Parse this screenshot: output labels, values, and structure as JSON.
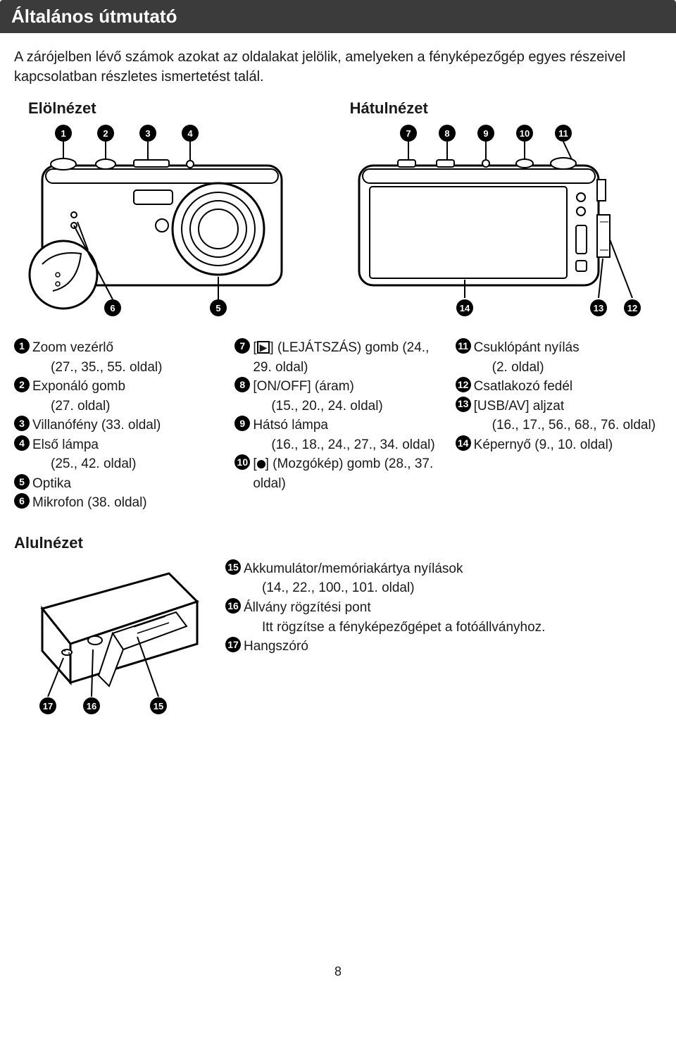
{
  "page": {
    "title": "Általános útmutató",
    "intro": "A zárójelben lévő számok azokat az oldalakat jelölik, amelyeken a fényképezőgép egyes részeivel kapcsolatban részletes ismertetést talál.",
    "front_label": "Elölnézet",
    "rear_label": "Hátulnézet",
    "bottom_label": "Alulnézet",
    "page_number": "8"
  },
  "front_callouts": [
    "1",
    "2",
    "3",
    "4",
    "5",
    "6"
  ],
  "rear_callouts": [
    "7",
    "8",
    "9",
    "10",
    "11",
    "12",
    "13",
    "14"
  ],
  "bottom_callouts": [
    "15",
    "16",
    "17"
  ],
  "legend_col1": [
    {
      "n": "1",
      "t": "Zoom vezérlő",
      "s": "(27., 35., 55. oldal)"
    },
    {
      "n": "2",
      "t": "Exponáló gomb",
      "s": "(27. oldal)"
    },
    {
      "n": "3",
      "t": "Villanófény (33. oldal)",
      "s": ""
    },
    {
      "n": "4",
      "t": "Első lámpa",
      "s": "(25., 42. oldal)"
    },
    {
      "n": "5",
      "t": "Optika",
      "s": ""
    },
    {
      "n": "6",
      "t": "Mikrofon (38. oldal)",
      "s": ""
    }
  ],
  "legend_col2": [
    {
      "n": "7",
      "t": "[▶] (LEJÁTSZÁS) gomb (24., 29. oldal)",
      "icon": "play"
    },
    {
      "n": "8",
      "t": "[ON/OFF] (áram)",
      "s": "(15., 20., 24. oldal)"
    },
    {
      "n": "9",
      "t": "Hátsó lámpa",
      "s": "(16., 18., 24., 27., 34. oldal)"
    },
    {
      "n": "10",
      "t": "[●] (Mozgókép) gomb (28., 37. oldal)",
      "icon": "dot"
    }
  ],
  "legend_col3": [
    {
      "n": "11",
      "t": "Csuklópánt nyílás",
      "s": "(2. oldal)"
    },
    {
      "n": "12",
      "t": "Csatlakozó fedél",
      "s": ""
    },
    {
      "n": "13",
      "t": "[USB/AV] aljzat",
      "s": "(16., 17., 56., 68., 76. oldal)"
    },
    {
      "n": "14",
      "t": "Képernyő (9., 10. oldal)",
      "s": ""
    }
  ],
  "bottom_legend": [
    {
      "n": "15",
      "t": "Akkumulátor/memóriakártya nyílások",
      "s": "(14., 22., 100., 101. oldal)"
    },
    {
      "n": "16",
      "t": "Állvány rögzítési pont",
      "s": "Itt rögzítse a fényképezőgépet a fotóállványhoz."
    },
    {
      "n": "17",
      "t": "Hangszóró",
      "s": ""
    }
  ],
  "colors": {
    "titlebar_bg": "#3b3b3b",
    "titlebar_fg": "#ffffff",
    "text": "#1a1a1a",
    "callout_bg": "#000000",
    "callout_fg": "#ffffff"
  }
}
